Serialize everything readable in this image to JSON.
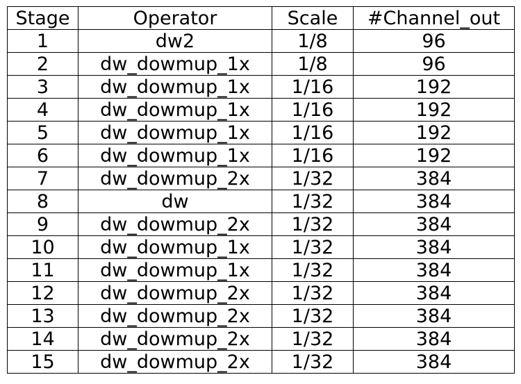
{
  "chart_data": {
    "type": "table",
    "columns": [
      "Stage",
      "Operator",
      "Scale",
      "#Channel_out"
    ],
    "rows": [
      [
        "1",
        "dw2",
        "1/8",
        "96"
      ],
      [
        "2",
        "dw_dowmup_1x",
        "1/8",
        "96"
      ],
      [
        "3",
        "dw_dowmup_1x",
        "1/16",
        "192"
      ],
      [
        "4",
        "dw_dowmup_1x",
        "1/16",
        "192"
      ],
      [
        "5",
        "dw_dowmup_1x",
        "1/16",
        "192"
      ],
      [
        "6",
        "dw_dowmup_1x",
        "1/16",
        "192"
      ],
      [
        "7",
        "dw_dowmup_2x",
        "1/32",
        "384"
      ],
      [
        "8",
        "dw",
        "1/32",
        "384"
      ],
      [
        "9",
        "dw_dowmup_2x",
        "1/32",
        "384"
      ],
      [
        "10",
        "dw_dowmup_1x",
        "1/32",
        "384"
      ],
      [
        "11",
        "dw_dowmup_1x",
        "1/32",
        "384"
      ],
      [
        "12",
        "dw_dowmup_2x",
        "1/32",
        "384"
      ],
      [
        "13",
        "dw_dowmup_2x",
        "1/32",
        "384"
      ],
      [
        "14",
        "dw_dowmup_2x",
        "1/32",
        "384"
      ],
      [
        "15",
        "dw_dowmup_2x",
        "1/32",
        "384"
      ]
    ]
  }
}
